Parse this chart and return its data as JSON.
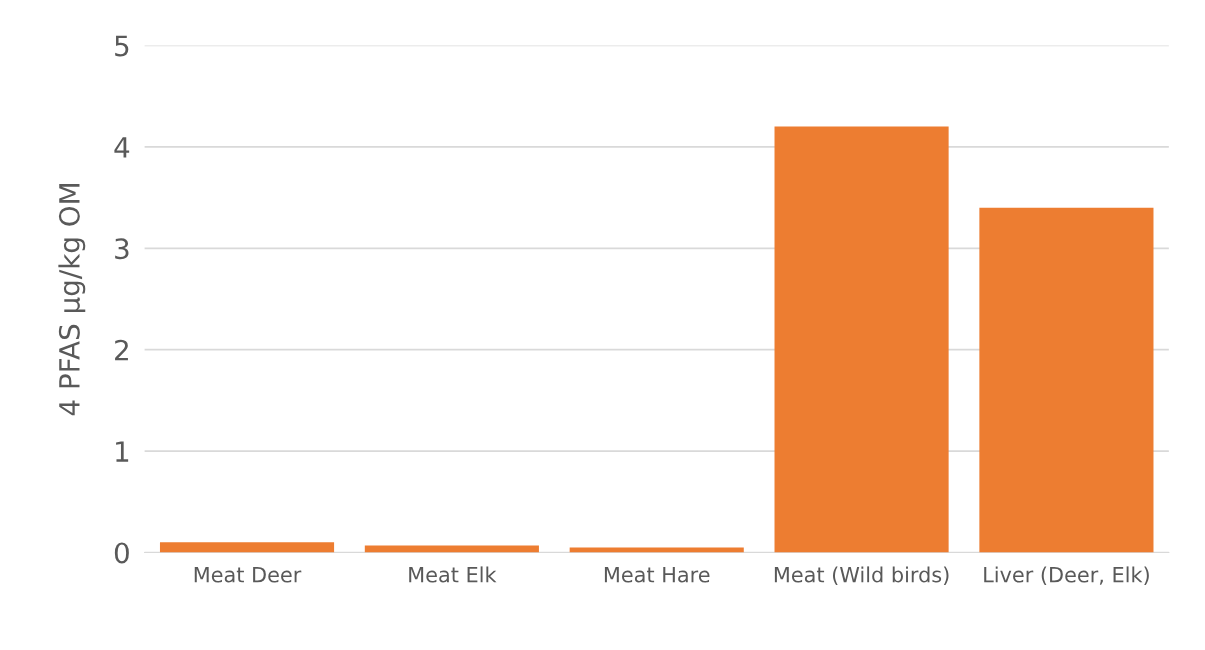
{
  "chart_data": {
    "type": "bar",
    "ylabel": "4 PFAS µg/kg OM",
    "categories": [
      "Meat Deer",
      "Meat Elk",
      "Meat Hare",
      "Meat (Wild birds)",
      "Liver (Deer, Elk)"
    ],
    "values": [
      0.1,
      0.07,
      0.05,
      4.2,
      3.4
    ],
    "color": "#ed7d31",
    "ylim": [
      0,
      5
    ],
    "yticks": [
      0,
      1,
      2,
      3,
      4,
      5
    ],
    "grid": "y",
    "legend": false
  }
}
